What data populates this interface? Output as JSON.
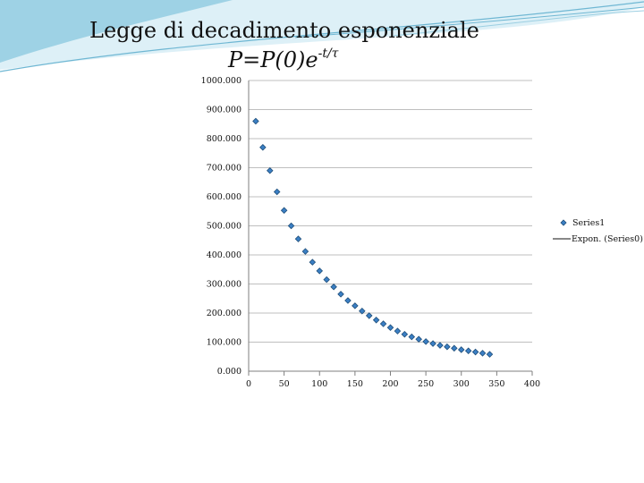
{
  "title": "Legge di decadimento esponenziale",
  "formula": {
    "base": "P=P(0)e",
    "exponent": "-t/τ"
  },
  "colors": {
    "marker_fill": "#3b7fc4",
    "marker_stroke": "#1f4e79",
    "grid": "#bfbfbf",
    "axis": "#7f7f7f",
    "banner": "#9fd3e6"
  },
  "chart_data": {
    "type": "scatter",
    "xlim": [
      0,
      400
    ],
    "ylim": [
      0,
      1000
    ],
    "x_ticks": [
      0,
      50,
      100,
      150,
      200,
      250,
      300,
      350,
      400
    ],
    "x_tick_labels": [
      "0",
      "50",
      "100",
      "150",
      "200",
      "250",
      "300",
      "350",
      "400"
    ],
    "y_ticks": [
      0,
      100,
      200,
      300,
      400,
      500,
      600,
      700,
      800,
      900,
      1000
    ],
    "y_tick_labels": [
      "0.000",
      "100.000",
      "200.000",
      "300.000",
      "400.000",
      "500.000",
      "600.000",
      "700.000",
      "800.000",
      "900.000",
      "1000.000"
    ],
    "grid": true,
    "legend_position": "right",
    "series": [
      {
        "name": "Series1",
        "marker": "diamond",
        "x": [
          10,
          20,
          30,
          40,
          50,
          60,
          70,
          80,
          90,
          100,
          110,
          120,
          130,
          140,
          150,
          160,
          170,
          180,
          190,
          200,
          210,
          220,
          230,
          240,
          250,
          260,
          270,
          280,
          290,
          300,
          310,
          320,
          330,
          340
        ],
        "y": [
          860,
          770,
          690,
          617,
          553,
          500,
          455,
          412,
          375,
          345,
          315,
          290,
          265,
          243,
          225,
          207,
          191,
          176,
          163,
          150,
          138,
          127,
          118,
          110,
          102,
          95,
          89,
          84,
          79,
          74,
          70,
          66,
          62,
          58
        ]
      }
    ],
    "legend": [
      {
        "label": "Series1",
        "kind": "marker"
      },
      {
        "label": "Expon. (Series0)",
        "kind": "line"
      }
    ]
  }
}
